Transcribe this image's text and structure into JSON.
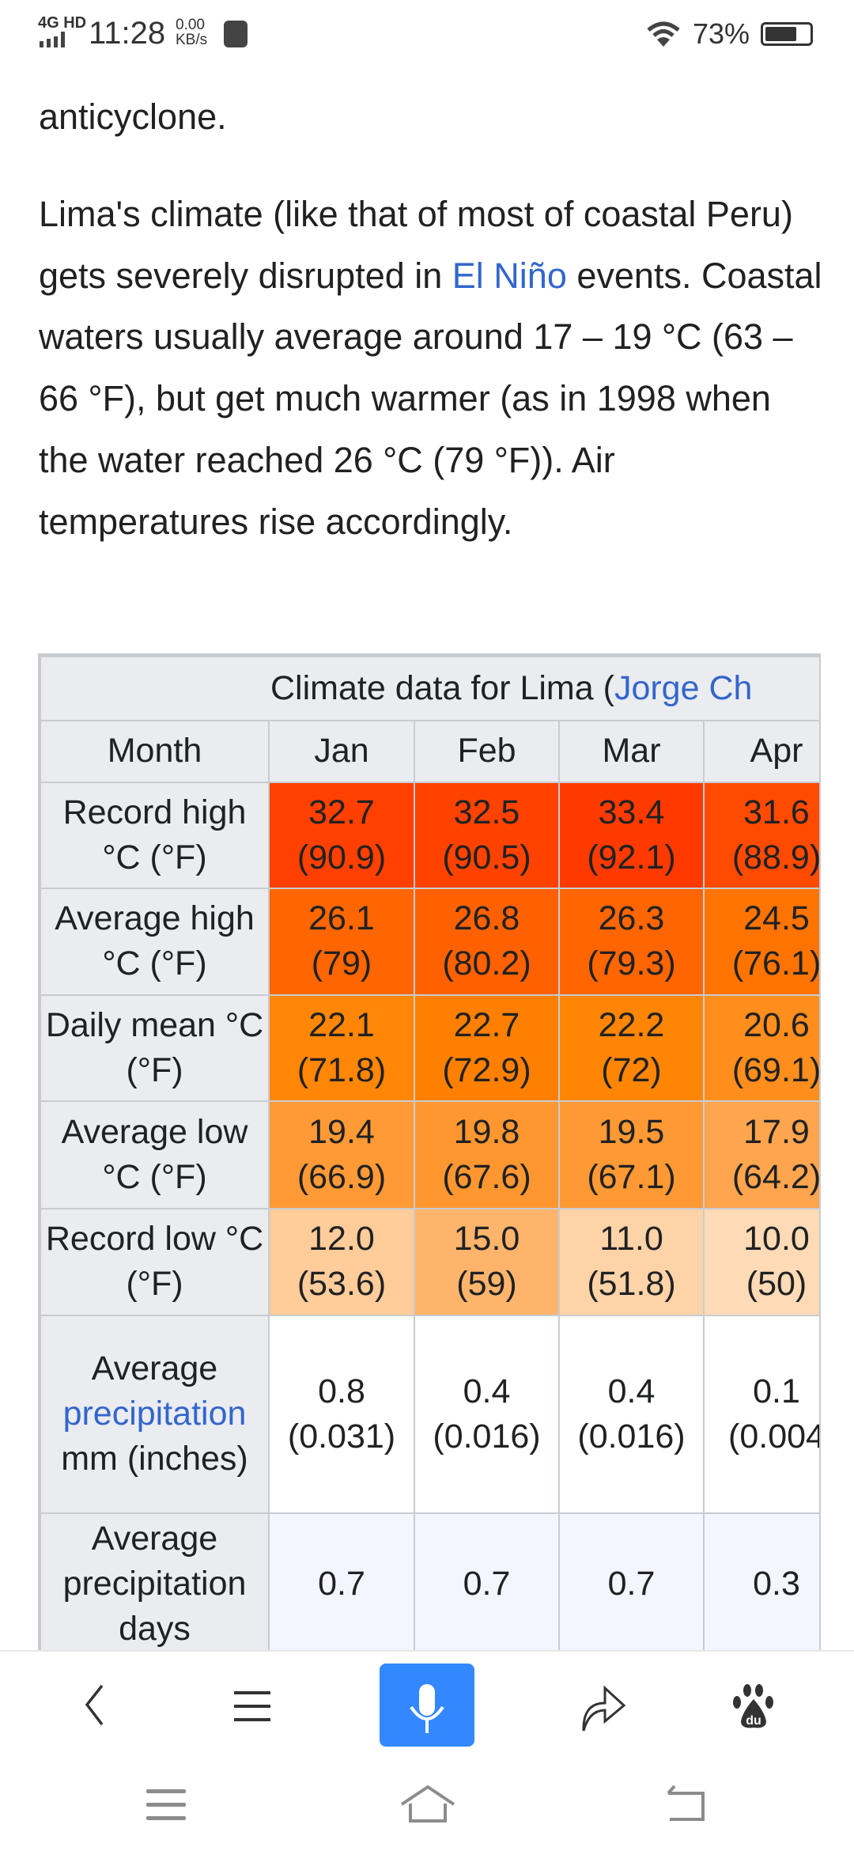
{
  "status_bar": {
    "network": "4G HD",
    "time": "11:28",
    "speed_value": "0.00",
    "speed_unit": "KB/s",
    "battery": "73%",
    "battery_level": 73
  },
  "article": {
    "line0": "anticyclone.",
    "p_before_link": "Lima's climate (like that of most of coastal Peru) gets severely disrupted in ",
    "p_link": "El Niño",
    "p_after_link": " events. Coastal waters usually average around 17 – 19 °C (63 – 66 °F), but get much warmer (as in 1998 when the water reached 26 °C (79 °F)). Air temperatures rise accordingly."
  },
  "climate_table": {
    "title_prefix": "Climate data for Lima (",
    "title_link": "Jorge Ch",
    "month_header": "Month",
    "months": [
      "Jan",
      "Feb",
      "Mar",
      "Apr"
    ],
    "rows": [
      {
        "label": "Record high °C (°F)",
        "cells": [
          [
            "32.7",
            "(90.9)",
            "#ff4000"
          ],
          [
            "32.5",
            "(90.5)",
            "#ff4200"
          ],
          [
            "33.4",
            "(92.1)",
            "#ff3a00"
          ],
          [
            "31.6",
            "(88.9)",
            "#ff4a00"
          ]
        ]
      },
      {
        "label": "Average high °C (°F)",
        "cells": [
          [
            "26.1",
            "(79)",
            "#ff6600"
          ],
          [
            "26.8",
            "(80.2)",
            "#ff6100"
          ],
          [
            "26.3",
            "(79.3)",
            "#ff6500"
          ],
          [
            "24.5",
            "(76.1)",
            "#ff7400"
          ]
        ]
      },
      {
        "label": "Daily mean °C (°F)",
        "cells": [
          [
            "22.1",
            "(71.8)",
            "#ff8606"
          ],
          [
            "22.7",
            "(72.9)",
            "#ff8000"
          ],
          [
            "22.2",
            "(72)",
            "#ff8505"
          ],
          [
            "20.6",
            "(69.1)",
            "#ff8e1c"
          ]
        ]
      },
      {
        "label": "Average low °C (°F)",
        "cells": [
          [
            "19.4",
            "(66.9)",
            "#ff9a36"
          ],
          [
            "19.8",
            "(67.6)",
            "#ff9730"
          ],
          [
            "19.5",
            "(67.1)",
            "#ff9934"
          ],
          [
            "17.9",
            "(64.2)",
            "#ffa54e"
          ]
        ]
      },
      {
        "label": "Record low °C (°F)",
        "cells": [
          [
            "12.0",
            "(53.6)",
            "#ffcc9a"
          ],
          [
            "15.0",
            "(59)",
            "#ffb46c"
          ],
          [
            "11.0",
            "(51.8)",
            "#ffd3a8"
          ],
          [
            "10.0",
            "(50)",
            "#ffdab6"
          ]
        ]
      }
    ],
    "precip": {
      "label_pre": "Average",
      "label_link": "precipitation",
      "label_post": "mm (inches)",
      "cells": [
        [
          "0.8",
          "(0.031)"
        ],
        [
          "0.4",
          "(0.016)"
        ],
        [
          "0.4",
          "(0.016)"
        ],
        [
          "0.1",
          "(0.004"
        ]
      ],
      "bg": "#fefffe"
    },
    "precip_days": {
      "label": "Average precipitation days",
      "values": [
        "0.7",
        "0.7",
        "0.7",
        "0.3"
      ],
      "bg": "#f4f6ff"
    }
  },
  "browser_bar": {
    "icons": [
      "back-icon",
      "menu-icon",
      "microphone-icon",
      "share-icon",
      "baidu-paw-icon"
    ],
    "mic_color": "#3388ff"
  },
  "system_nav": {
    "icons": [
      "recent-apps-icon",
      "home-icon",
      "back-icon"
    ]
  }
}
